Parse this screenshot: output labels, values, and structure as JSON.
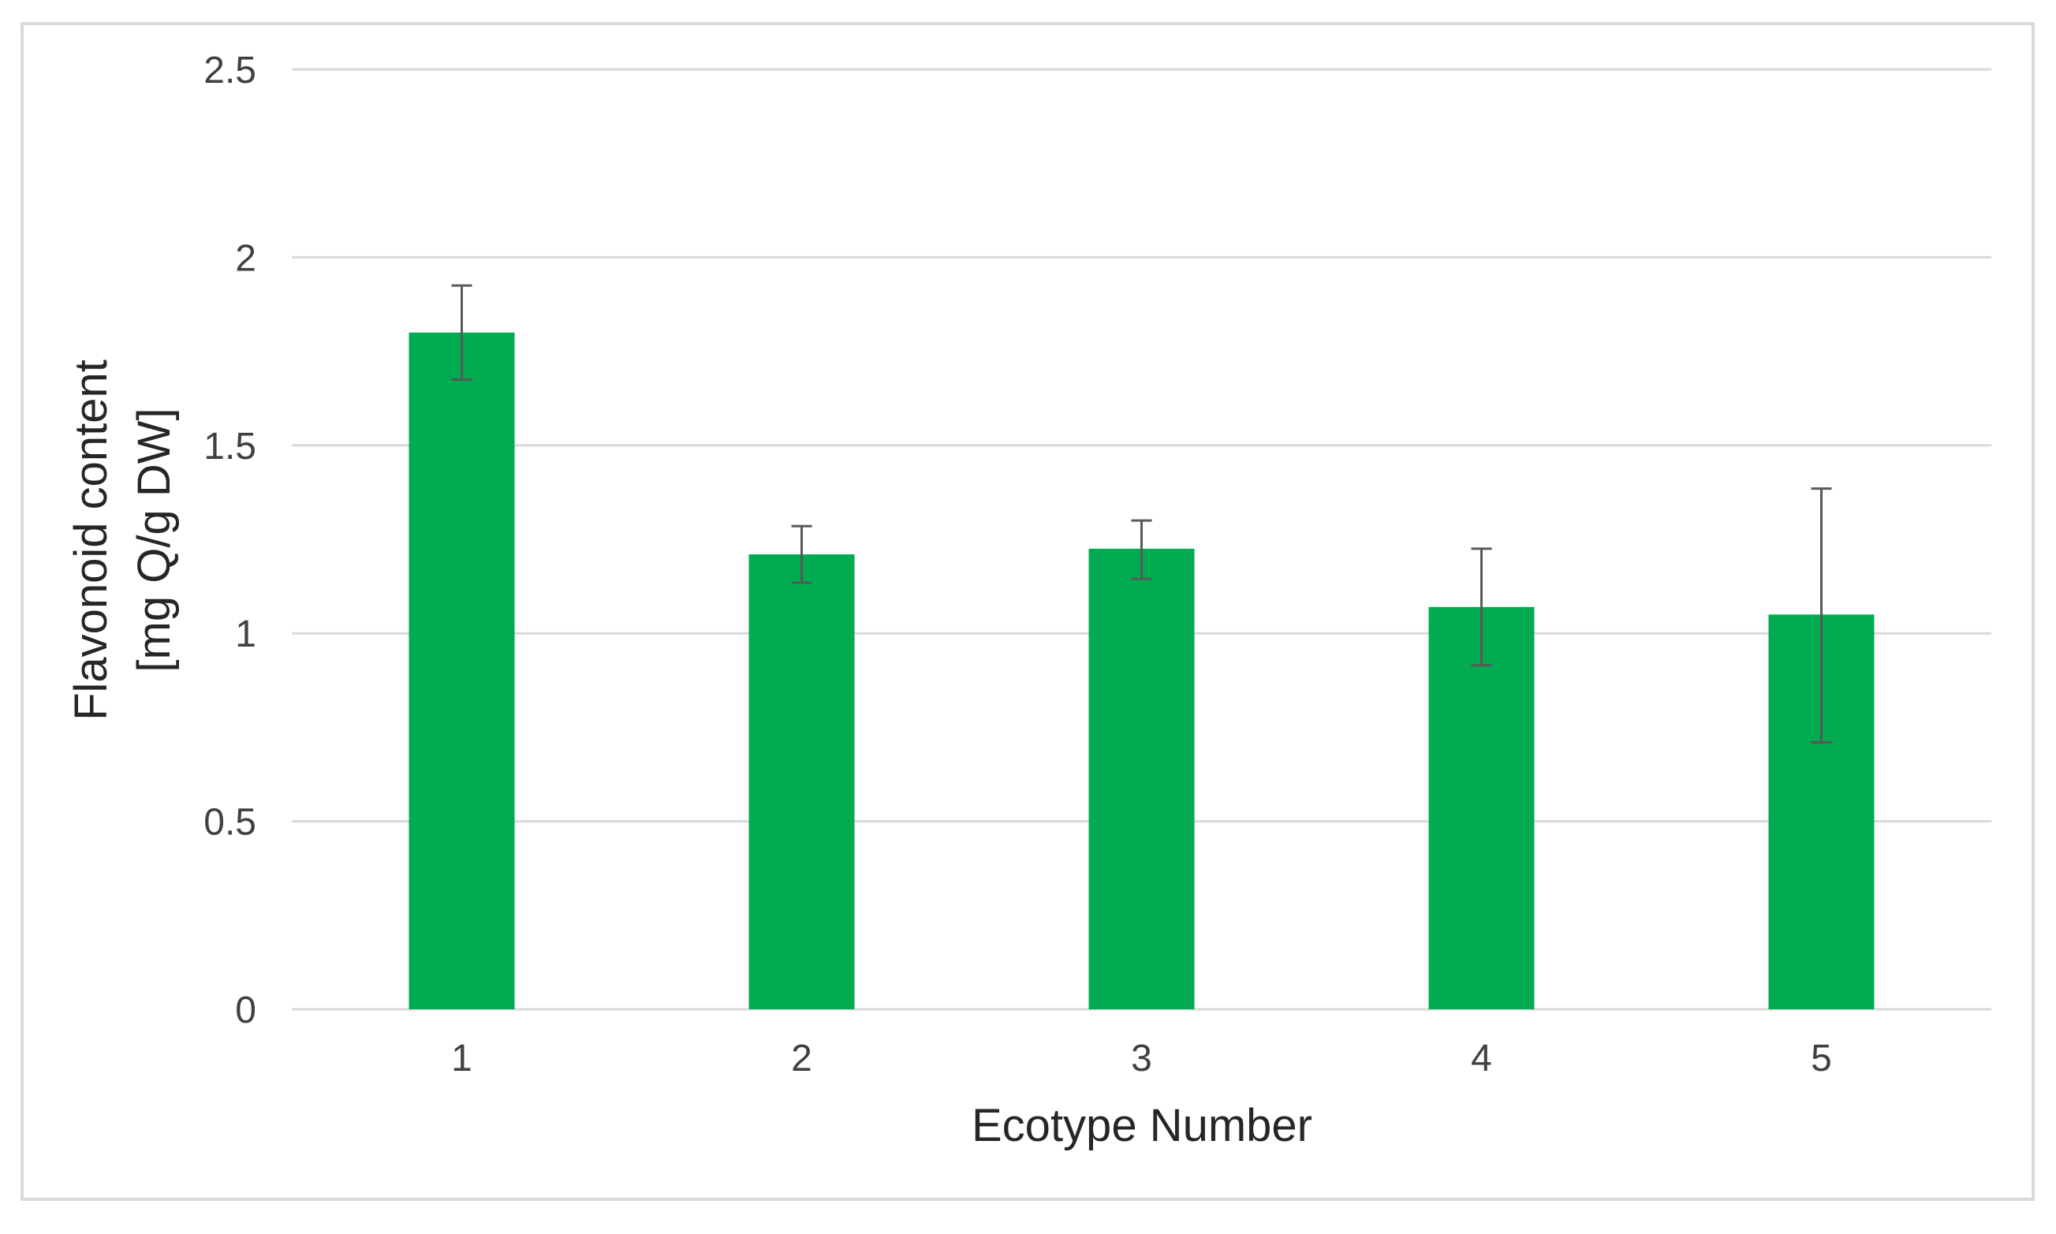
{
  "chart_data": {
    "type": "bar",
    "title": "",
    "xlabel": "Ecotype Number",
    "ylabel_lines": [
      "Flavonoid content",
      "[mg Q/g DW]"
    ],
    "categories": [
      "1",
      "2",
      "3",
      "4",
      "5"
    ],
    "values": [
      1.8,
      1.21,
      1.225,
      1.07,
      1.05
    ],
    "error_upper": [
      1.925,
      1.285,
      1.3,
      1.225,
      1.385
    ],
    "error_lower": [
      1.675,
      1.135,
      1.145,
      0.915,
      0.71
    ],
    "ylim": [
      0,
      2.5
    ],
    "yticks": [
      "0",
      "0.5",
      "1",
      "1.5",
      "2",
      "2.5"
    ],
    "grid": true,
    "legend": "none",
    "colors": {
      "bar": "#00ab52",
      "error_bar": "#595959",
      "grid": "#d9d9d9",
      "frame": "#d9d9d9"
    }
  }
}
